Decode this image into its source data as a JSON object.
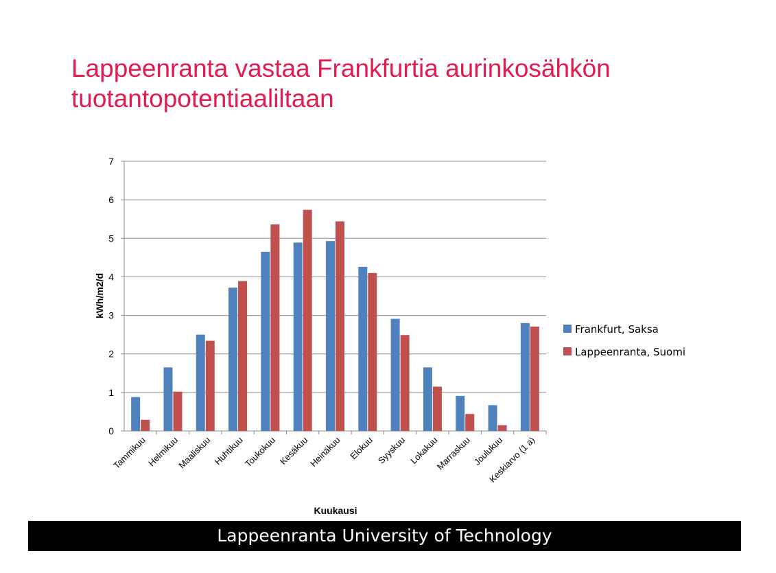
{
  "slide": {
    "title_line1": "Lappeenranta vastaa Frankfurtia aurinkosähkön",
    "title_line2": "tuotantopotentiaaliltaan",
    "footer": "Lappeenranta University of Technology"
  },
  "colors": {
    "title": "#e31b4f",
    "frankfurt": "#4f81bd",
    "lappeenranta": "#c0504d",
    "gridline": "#8c8c8c",
    "footer_bg": "#000000"
  },
  "chart_data": {
    "type": "bar",
    "title": "",
    "xlabel": "Kuukausi",
    "ylabel": "kWh/m2/d",
    "ylim": [
      0,
      7
    ],
    "yticks": [
      "0",
      "1",
      "2",
      "3",
      "4",
      "5",
      "6",
      "7"
    ],
    "grid": true,
    "legend_position": "right",
    "categories": [
      "Tammikuu",
      "Helmikuu",
      "Maaliskuu",
      "Huhtikuu",
      "Toukokuu",
      "Kesäkuu",
      "Heinäkuu",
      "Elokuu",
      "Syyskuu",
      "Lokakuu",
      "Marraskuu",
      "Joulukuu",
      "Keskiarvo (1 a)"
    ],
    "series": [
      {
        "name": "Frankfurt, Saksa",
        "color": "#4f81bd",
        "values": [
          0.88,
          1.65,
          2.5,
          3.72,
          4.65,
          4.89,
          4.93,
          4.26,
          2.91,
          1.65,
          0.91,
          0.67,
          2.8
        ]
      },
      {
        "name": "Lappeenranta, Suomi",
        "color": "#c0504d",
        "values": [
          0.29,
          1.02,
          2.34,
          3.89,
          5.36,
          5.74,
          5.44,
          4.1,
          2.49,
          1.15,
          0.44,
          0.15,
          2.71
        ]
      }
    ]
  }
}
